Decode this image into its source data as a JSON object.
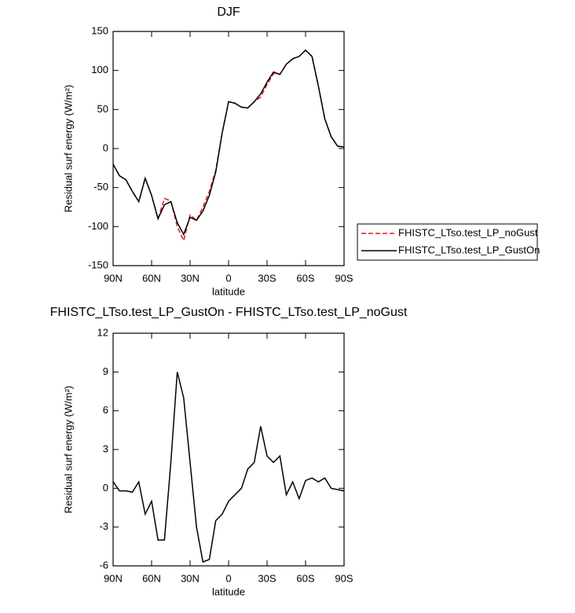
{
  "chart_data": [
    {
      "type": "line",
      "title": "DJF",
      "xlabel": "latitude",
      "ylabel": "Residual surf energy (W/m²)",
      "x": [
        90,
        85,
        80,
        75,
        70,
        65,
        60,
        55,
        50,
        45,
        40,
        35,
        30,
        25,
        20,
        15,
        10,
        5,
        0,
        -5,
        -10,
        -15,
        -20,
        -25,
        -30,
        -35,
        -40,
        -45,
        -50,
        -55,
        -60,
        -65,
        -70,
        -75,
        -80,
        -85,
        -90
      ],
      "series": [
        {
          "name": "FHISTC_LTso.test_LP_noGust",
          "color": "#e8141b",
          "dashed": true,
          "values": [
            -20,
            -35,
            -40,
            -55,
            -68,
            -38,
            -60,
            -90,
            -64,
            -67,
            -100,
            -118,
            -85,
            -92,
            -75,
            -55,
            -28,
            20,
            60,
            58,
            53,
            52,
            60,
            66,
            82,
            96,
            95,
            108,
            115,
            118,
            126,
            118,
            80,
            38,
            15,
            3,
            2
          ]
        },
        {
          "name": "FHISTC_LTso.test_LP_GustOn",
          "color": "#000000",
          "dashed": false,
          "values": [
            -20,
            -35,
            -40,
            -55,
            -68,
            -38,
            -60,
            -90,
            -72,
            -68,
            -95,
            -110,
            -88,
            -92,
            -80,
            -60,
            -30,
            20,
            60,
            58,
            53,
            52,
            60,
            70,
            85,
            98,
            95,
            108,
            115,
            118,
            126,
            118,
            80,
            38,
            15,
            3,
            2
          ]
        }
      ],
      "xlim": [
        90,
        -90
      ],
      "ylim": [
        -150,
        150
      ],
      "xticks": [
        {
          "value": 90,
          "label": "90N"
        },
        {
          "value": 60,
          "label": "60N"
        },
        {
          "value": 30,
          "label": "30N"
        },
        0,
        {
          "value": -30,
          "label": "30S"
        },
        {
          "value": -60,
          "label": "60S"
        },
        {
          "value": -90,
          "label": "90S"
        }
      ],
      "yticks": [
        -150,
        -100,
        -50,
        0,
        50,
        100,
        150
      ],
      "legend": "outside-right"
    },
    {
      "type": "line",
      "title": "FHISTC_LTso.test_LP_GustOn - FHISTC_LTso.test_LP_noGust",
      "xlabel": "latitude",
      "ylabel": "Residual surf energy (W/m²)",
      "x": [
        90,
        85,
        80,
        75,
        70,
        65,
        60,
        55,
        50,
        45,
        40,
        35,
        30,
        25,
        20,
        15,
        10,
        5,
        0,
        -5,
        -10,
        -15,
        -20,
        -25,
        -30,
        -35,
        -40,
        -45,
        -50,
        -55,
        -60,
        -65,
        -70,
        -75,
        -80,
        -85,
        -90
      ],
      "series": [
        {
          "color": "#000000",
          "dashed": false,
          "values": [
            0.5,
            -0.2,
            -0.2,
            -0.3,
            0.5,
            -2,
            -1,
            -4,
            -4,
            2,
            9,
            7,
            2,
            -3,
            -5.7,
            -5.5,
            -2.5,
            -2,
            -1,
            -0.5,
            0,
            1.5,
            2,
            4.8,
            2.5,
            2,
            2.5,
            -0.5,
            0.5,
            -0.8,
            0.6,
            0.8,
            0.5,
            0.8,
            0,
            -0.1,
            -0.2
          ]
        }
      ],
      "xlim": [
        90,
        -90
      ],
      "ylim": [
        -6,
        12
      ],
      "xticks": [
        {
          "value": 90,
          "label": "90N"
        },
        {
          "value": 60,
          "label": "60N"
        },
        {
          "value": 30,
          "label": "30N"
        },
        0,
        {
          "value": -30,
          "label": "30S"
        },
        {
          "value": -60,
          "label": "60S"
        },
        {
          "value": -90,
          "label": "90S"
        }
      ],
      "yticks": [
        -6,
        -3,
        0,
        3,
        6,
        9,
        12
      ]
    }
  ]
}
